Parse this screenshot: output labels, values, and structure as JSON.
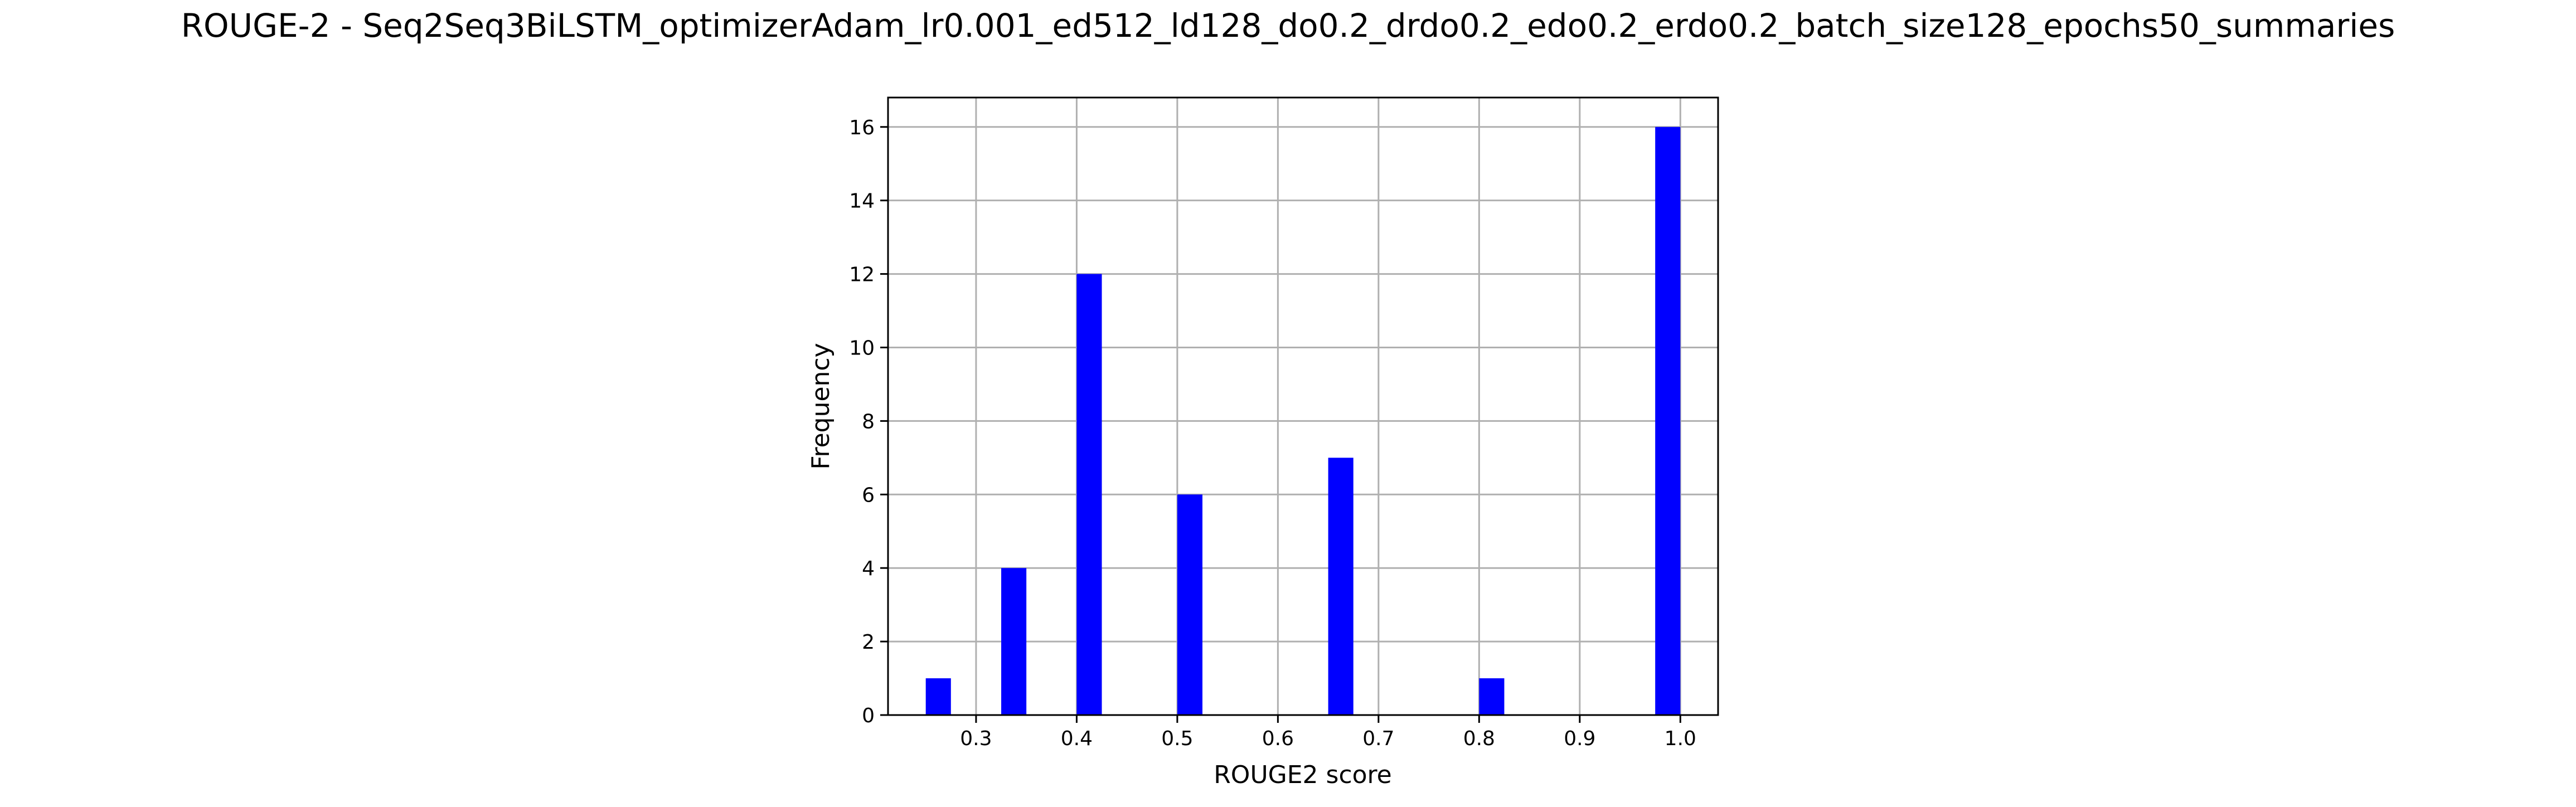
{
  "chart_data": {
    "type": "bar",
    "title": "ROUGE-2 - Seq2Seq3BiLSTM_optimizerAdam_lr0.001_ed512_ld128_do0.2_drdo0.2_edo0.2_erdo0.2_batch_size128_epochs50_summaries",
    "xlabel": "ROUGE2 score",
    "ylabel": "Frequency",
    "xlim": [
      0.2125,
      1.0375
    ],
    "ylim": [
      0,
      16.8
    ],
    "x_ticks": [
      0.3,
      0.4,
      0.5,
      0.6,
      0.7,
      0.8,
      0.9,
      1.0
    ],
    "x_tick_labels": [
      "0.3",
      "0.4",
      "0.5",
      "0.6",
      "0.7",
      "0.8",
      "0.9",
      "1.0"
    ],
    "y_ticks": [
      0,
      2,
      4,
      6,
      8,
      10,
      12,
      14,
      16
    ],
    "y_tick_labels": [
      "0",
      "2",
      "4",
      "6",
      "8",
      "10",
      "12",
      "14",
      "16"
    ],
    "grid": true,
    "bar_color": "#0000ff",
    "bars": [
      {
        "x_start": 0.25,
        "x_end": 0.275,
        "value": 1
      },
      {
        "x_start": 0.325,
        "x_end": 0.35,
        "value": 4
      },
      {
        "x_start": 0.4,
        "x_end": 0.425,
        "value": 12
      },
      {
        "x_start": 0.5,
        "x_end": 0.525,
        "value": 6
      },
      {
        "x_start": 0.65,
        "x_end": 0.675,
        "value": 7
      },
      {
        "x_start": 0.8,
        "x_end": 0.825,
        "value": 1
      },
      {
        "x_start": 0.975,
        "x_end": 1.0,
        "value": 16
      }
    ]
  }
}
